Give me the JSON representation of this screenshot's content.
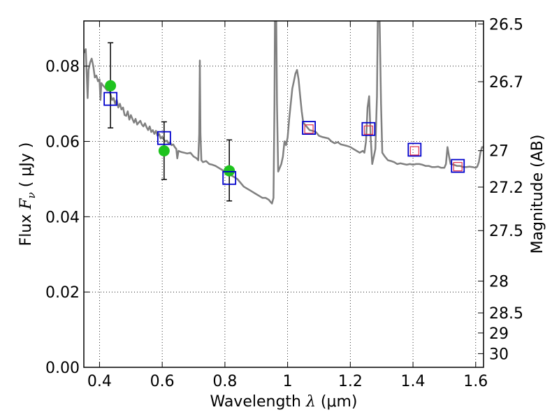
{
  "chart_data": {
    "type": "line",
    "xlabel": {
      "prefix": "Wavelength  ",
      "symbol": "λ",
      "suffix": " (μm)"
    },
    "ylabel": {
      "prefix": "Flux  ",
      "symbol": "F",
      "subscript": "ν",
      "suffix": "  ( μJy )"
    },
    "ylabel_right": "Magnitude (AB)",
    "xlim": [
      0.35,
      1.625
    ],
    "ylim": [
      0.0,
      0.092
    ],
    "x_ticks": [
      {
        "value": 0.4,
        "label": "0.4"
      },
      {
        "value": 0.6,
        "label": "0.6"
      },
      {
        "value": 0.8,
        "label": "0.8"
      },
      {
        "value": 1.0,
        "label": "1"
      },
      {
        "value": 1.2,
        "label": "1.2"
      },
      {
        "value": 1.4,
        "label": "1.4"
      },
      {
        "value": 1.6,
        "label": "1.6"
      }
    ],
    "y_ticks": [
      {
        "value": 0.0,
        "label": "0.00"
      },
      {
        "value": 0.02,
        "label": "0.02"
      },
      {
        "value": 0.04,
        "label": "0.04"
      },
      {
        "value": 0.06,
        "label": "0.06"
      },
      {
        "value": 0.08,
        "label": "0.08"
      }
    ],
    "right_ticks": [
      {
        "mag": 26.5,
        "label": "26.5"
      },
      {
        "mag": 26.7,
        "label": "26.7"
      },
      {
        "mag": 27.0,
        "label": "27"
      },
      {
        "mag": 27.2,
        "label": "27.2"
      },
      {
        "mag": 27.5,
        "label": "27.5"
      },
      {
        "mag": 28.0,
        "label": "28"
      },
      {
        "mag": 28.5,
        "label": "28.5"
      },
      {
        "mag": 29.0,
        "label": "29"
      },
      {
        "mag": 30.0,
        "label": "30"
      }
    ],
    "grid": true,
    "grid_style": "dotted",
    "series": [
      {
        "kind": "line",
        "color": "#808080",
        "points": [
          [
            0.35,
            0.0835
          ],
          [
            0.356,
            0.0845
          ],
          [
            0.36,
            0.076
          ],
          [
            0.362,
            0.0715
          ],
          [
            0.365,
            0.079
          ],
          [
            0.37,
            0.081
          ],
          [
            0.375,
            0.082
          ],
          [
            0.38,
            0.08
          ],
          [
            0.385,
            0.077
          ],
          [
            0.39,
            0.0775
          ],
          [
            0.395,
            0.076
          ],
          [
            0.4,
            0.0765
          ],
          [
            0.403,
            0.071
          ],
          [
            0.406,
            0.0755
          ],
          [
            0.41,
            0.075
          ],
          [
            0.415,
            0.0745
          ],
          [
            0.42,
            0.074
          ],
          [
            0.425,
            0.0735
          ],
          [
            0.43,
            0.074
          ],
          [
            0.435,
            0.0725
          ],
          [
            0.44,
            0.071
          ],
          [
            0.445,
            0.0715
          ],
          [
            0.45,
            0.07
          ],
          [
            0.455,
            0.071
          ],
          [
            0.46,
            0.069
          ],
          [
            0.465,
            0.07
          ],
          [
            0.47,
            0.0685
          ],
          [
            0.475,
            0.069
          ],
          [
            0.48,
            0.067
          ],
          [
            0.485,
            0.0668
          ],
          [
            0.49,
            0.068
          ],
          [
            0.495,
            0.0658
          ],
          [
            0.5,
            0.067
          ],
          [
            0.505,
            0.066
          ],
          [
            0.51,
            0.065
          ],
          [
            0.515,
            0.066
          ],
          [
            0.52,
            0.0645
          ],
          [
            0.525,
            0.065
          ],
          [
            0.53,
            0.0655
          ],
          [
            0.535,
            0.0645
          ],
          [
            0.54,
            0.064
          ],
          [
            0.545,
            0.0648
          ],
          [
            0.55,
            0.0638
          ],
          [
            0.555,
            0.063
          ],
          [
            0.56,
            0.064
          ],
          [
            0.565,
            0.0625
          ],
          [
            0.57,
            0.063
          ],
          [
            0.575,
            0.062
          ],
          [
            0.58,
            0.0628
          ],
          [
            0.585,
            0.0615
          ],
          [
            0.59,
            0.062
          ],
          [
            0.595,
            0.0608
          ],
          [
            0.6,
            0.0612
          ],
          [
            0.605,
            0.0605
          ],
          [
            0.61,
            0.06
          ],
          [
            0.615,
            0.0602
          ],
          [
            0.62,
            0.0595
          ],
          [
            0.625,
            0.0598
          ],
          [
            0.63,
            0.059
          ],
          [
            0.635,
            0.0592
          ],
          [
            0.64,
            0.0585
          ],
          [
            0.645,
            0.058
          ],
          [
            0.648,
            0.0555
          ],
          [
            0.652,
            0.0575
          ],
          [
            0.66,
            0.0572
          ],
          [
            0.67,
            0.057
          ],
          [
            0.68,
            0.0568
          ],
          [
            0.69,
            0.057
          ],
          [
            0.7,
            0.056
          ],
          [
            0.71,
            0.0555
          ],
          [
            0.715,
            0.055
          ],
          [
            0.718,
            0.062
          ],
          [
            0.72,
            0.0815
          ],
          [
            0.722,
            0.062
          ],
          [
            0.725,
            0.055
          ],
          [
            0.73,
            0.0545
          ],
          [
            0.74,
            0.0548
          ],
          [
            0.75,
            0.054
          ],
          [
            0.76,
            0.0538
          ],
          [
            0.77,
            0.0535
          ],
          [
            0.78,
            0.053
          ],
          [
            0.79,
            0.0525
          ],
          [
            0.8,
            0.052
          ],
          [
            0.81,
            0.0515
          ],
          [
            0.82,
            0.051
          ],
          [
            0.83,
            0.0505
          ],
          [
            0.84,
            0.05
          ],
          [
            0.85,
            0.049
          ],
          [
            0.86,
            0.048
          ],
          [
            0.87,
            0.0475
          ],
          [
            0.88,
            0.047
          ],
          [
            0.89,
            0.0465
          ],
          [
            0.9,
            0.046
          ],
          [
            0.91,
            0.0455
          ],
          [
            0.92,
            0.045
          ],
          [
            0.93,
            0.045
          ],
          [
            0.94,
            0.0445
          ],
          [
            0.945,
            0.044
          ],
          [
            0.95,
            0.0435
          ],
          [
            0.955,
            0.045
          ],
          [
            0.958,
            0.07
          ],
          [
            0.96,
            0.1
          ],
          [
            0.963,
            0.1
          ],
          [
            0.966,
            0.07
          ],
          [
            0.97,
            0.052
          ],
          [
            0.975,
            0.053
          ],
          [
            0.98,
            0.054
          ],
          [
            0.985,
            0.056
          ],
          [
            0.99,
            0.06
          ],
          [
            0.995,
            0.059
          ],
          [
            1.0,
            0.061
          ],
          [
            1.005,
            0.066
          ],
          [
            1.01,
            0.07
          ],
          [
            1.015,
            0.074
          ],
          [
            1.02,
            0.076
          ],
          [
            1.025,
            0.078
          ],
          [
            1.03,
            0.079
          ],
          [
            1.035,
            0.0765
          ],
          [
            1.04,
            0.072
          ],
          [
            1.045,
            0.068
          ],
          [
            1.05,
            0.065
          ],
          [
            1.06,
            0.064
          ],
          [
            1.07,
            0.063
          ],
          [
            1.08,
            0.0628
          ],
          [
            1.09,
            0.0625
          ],
          [
            1.1,
            0.0615
          ],
          [
            1.11,
            0.0612
          ],
          [
            1.12,
            0.061
          ],
          [
            1.13,
            0.0608
          ],
          [
            1.14,
            0.06
          ],
          [
            1.15,
            0.0595
          ],
          [
            1.16,
            0.0598
          ],
          [
            1.17,
            0.0592
          ],
          [
            1.18,
            0.059
          ],
          [
            1.19,
            0.0588
          ],
          [
            1.2,
            0.0585
          ],
          [
            1.21,
            0.058
          ],
          [
            1.22,
            0.0575
          ],
          [
            1.23,
            0.057
          ],
          [
            1.24,
            0.0575
          ],
          [
            1.245,
            0.057
          ],
          [
            1.25,
            0.06
          ],
          [
            1.255,
            0.069
          ],
          [
            1.26,
            0.072
          ],
          [
            1.265,
            0.061
          ],
          [
            1.27,
            0.054
          ],
          [
            1.275,
            0.056
          ],
          [
            1.28,
            0.058
          ],
          [
            1.285,
            0.072
          ],
          [
            1.288,
            0.095
          ],
          [
            1.291,
            0.1
          ],
          [
            1.294,
            0.09
          ],
          [
            1.298,
            0.07
          ],
          [
            1.302,
            0.057
          ],
          [
            1.31,
            0.056
          ],
          [
            1.32,
            0.055
          ],
          [
            1.33,
            0.0548
          ],
          [
            1.34,
            0.0545
          ],
          [
            1.35,
            0.054
          ],
          [
            1.36,
            0.0542
          ],
          [
            1.37,
            0.054
          ],
          [
            1.38,
            0.0538
          ],
          [
            1.39,
            0.054
          ],
          [
            1.4,
            0.0538
          ],
          [
            1.41,
            0.054
          ],
          [
            1.42,
            0.054
          ],
          [
            1.43,
            0.0538
          ],
          [
            1.44,
            0.0535
          ],
          [
            1.45,
            0.0535
          ],
          [
            1.46,
            0.0532
          ],
          [
            1.47,
            0.0532
          ],
          [
            1.48,
            0.0533
          ],
          [
            1.49,
            0.053
          ],
          [
            1.5,
            0.053
          ],
          [
            1.505,
            0.054
          ],
          [
            1.51,
            0.0585
          ],
          [
            1.515,
            0.056
          ],
          [
            1.52,
            0.054
          ],
          [
            1.53,
            0.0538
          ],
          [
            1.54,
            0.0535
          ],
          [
            1.55,
            0.0535
          ],
          [
            1.56,
            0.0532
          ],
          [
            1.57,
            0.0532
          ],
          [
            1.58,
            0.0533
          ],
          [
            1.59,
            0.0532
          ],
          [
            1.6,
            0.053
          ],
          [
            1.605,
            0.0533
          ],
          [
            1.61,
            0.0545
          ],
          [
            1.615,
            0.057
          ],
          [
            1.62,
            0.0585
          ],
          [
            1.625,
            0.0585
          ]
        ]
      },
      {
        "kind": "errorbar",
        "marker": "circle",
        "color": "#1ec31e",
        "errorbar_color": "#000000",
        "points": [
          {
            "x": 0.435,
            "y": 0.0748,
            "ylo": 0.0636,
            "yhi": 0.0862
          },
          {
            "x": 0.606,
            "y": 0.0575,
            "ylo": 0.0499,
            "yhi": 0.0652
          },
          {
            "x": 0.814,
            "y": 0.0522,
            "ylo": 0.0442,
            "yhi": 0.0604
          }
        ]
      },
      {
        "kind": "scatter",
        "marker": "square",
        "color": "#0000cc",
        "size": "large",
        "points": [
          [
            0.435,
            0.0713
          ],
          [
            0.606,
            0.0609
          ],
          [
            0.814,
            0.0503
          ],
          [
            1.068,
            0.0636
          ],
          [
            1.258,
            0.0633
          ],
          [
            1.405,
            0.0578
          ],
          [
            1.543,
            0.0535
          ]
        ]
      },
      {
        "kind": "scatter",
        "marker": "square",
        "color": "#e0304a",
        "size": "small",
        "points": [
          [
            1.068,
            0.0633
          ],
          [
            1.258,
            0.063
          ],
          [
            1.405,
            0.0575
          ],
          [
            1.543,
            0.0533
          ]
        ]
      }
    ]
  }
}
